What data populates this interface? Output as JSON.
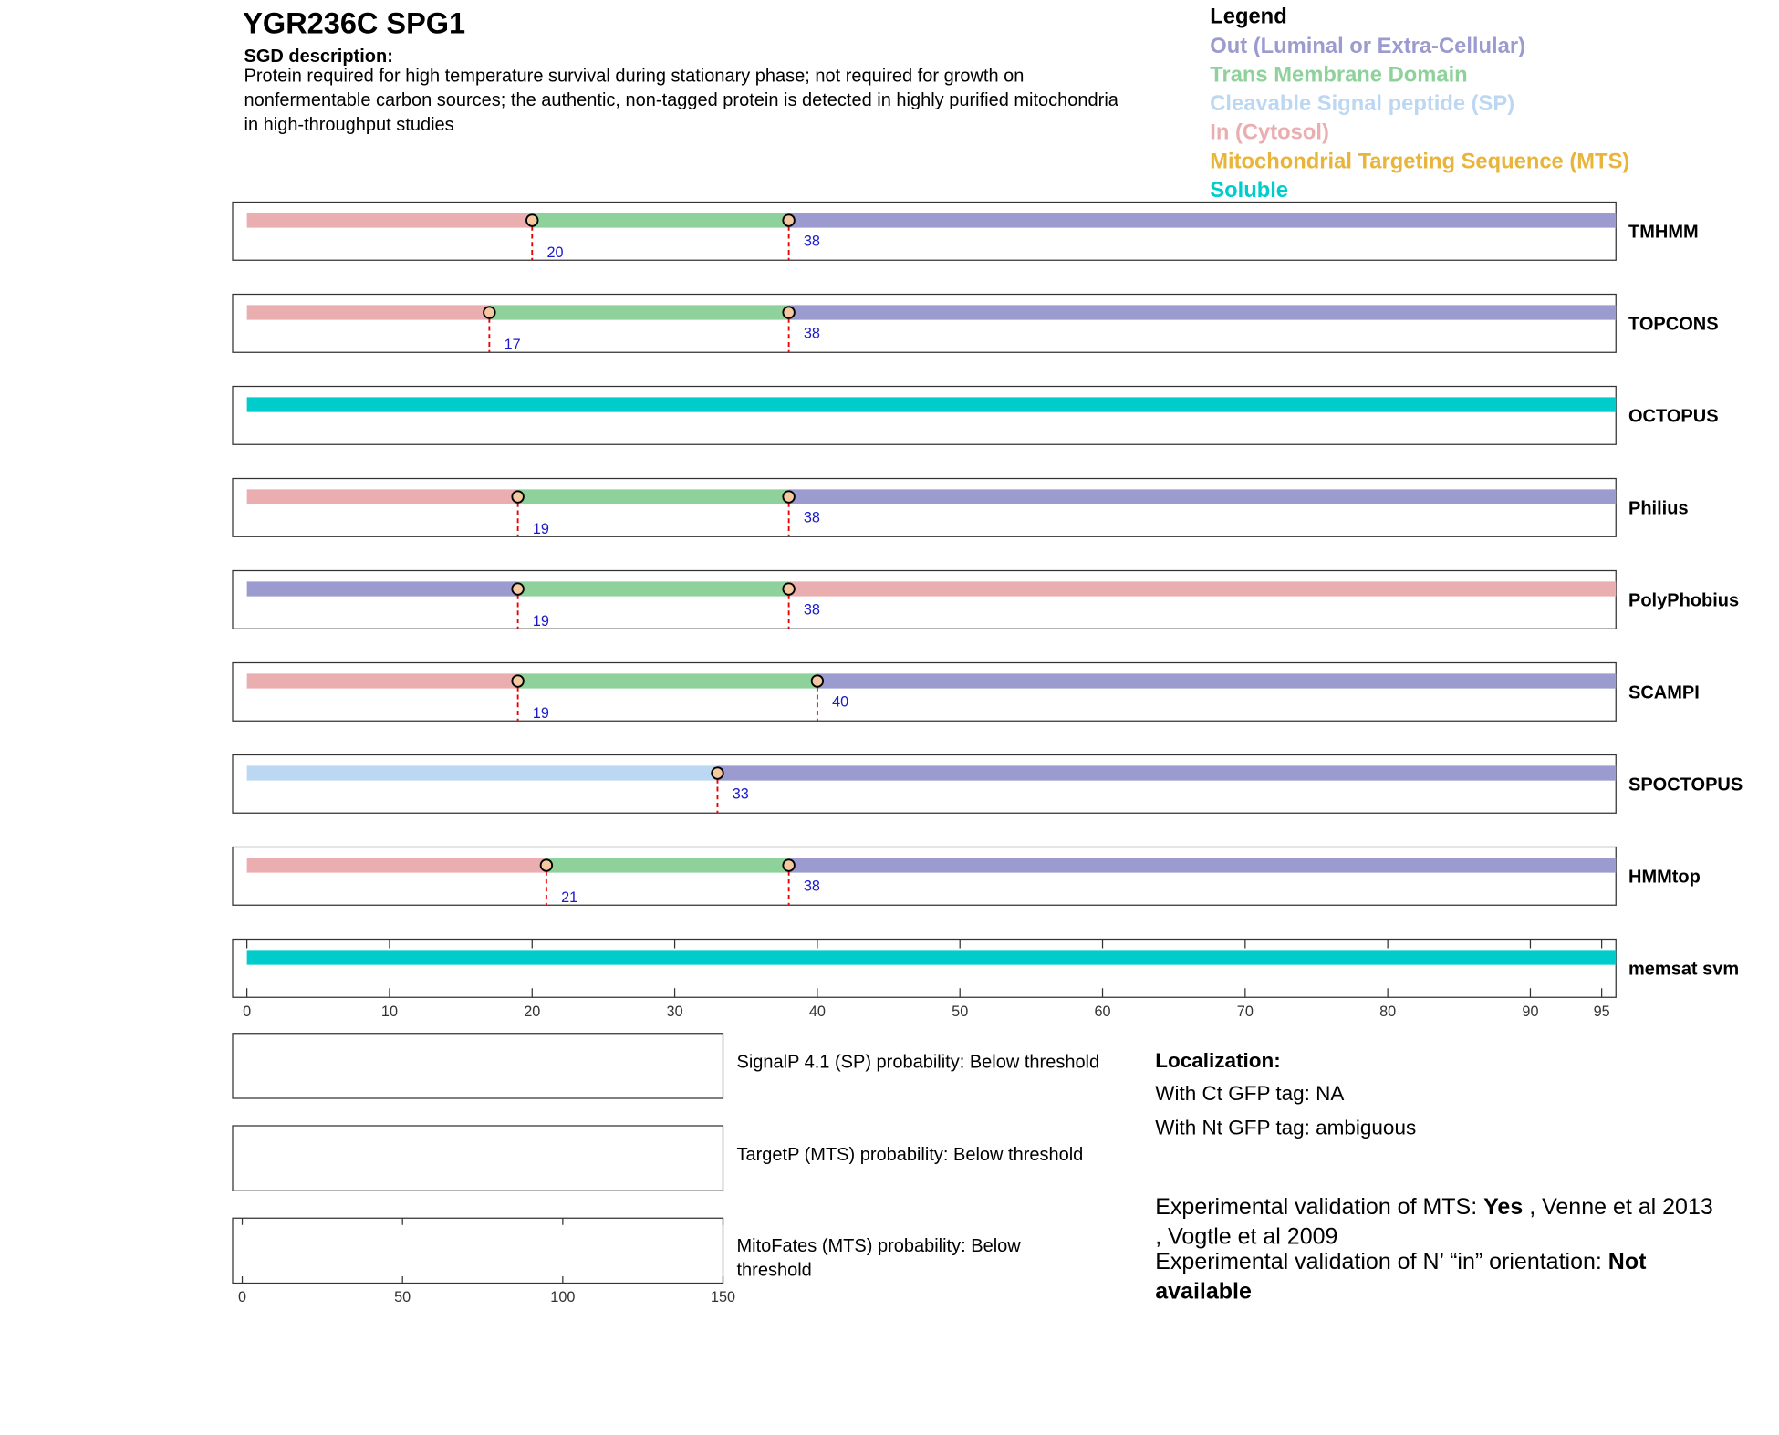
{
  "header": {
    "title": "YGR236C  SPG1",
    "subtitle": "SGD description:",
    "description": [
      "Protein required for high temperature survival during stationary phase; not required for growth on",
      "nonfermentable carbon sources; the authentic, non-tagged protein is detected in highly purified mitochondria",
      "in high-throughput studies"
    ]
  },
  "legend": {
    "title": "Legend",
    "items": [
      {
        "name": "Out (Luminal or Extra-Cellular)",
        "color": "#9b9bcf"
      },
      {
        "name": "Trans Membrane Domain",
        "color": "#8fd19b"
      },
      {
        "name": "Cleavable Signal peptide (SP)",
        "color": "#bcd7f2"
      },
      {
        "name": "In (Cytosol)",
        "color": "#eaaeb0"
      },
      {
        "name": "Mitochondrial Targeting Sequence (MTS)",
        "color": "#e8b43a"
      },
      {
        "name": "Soluble",
        "color": "#00cccc"
      }
    ]
  },
  "chart_data": {
    "type": "topology",
    "xlim": [
      -1,
      96
    ],
    "xticks": [
      0,
      10,
      20,
      30,
      40,
      50,
      60,
      70,
      80,
      90,
      95
    ],
    "tracks": [
      {
        "name": "TMHMM",
        "boundaries": [
          20,
          38
        ],
        "colors": [
          "#eaaeb0",
          "#8fd19b",
          "#9b9bcf"
        ]
      },
      {
        "name": "TOPCONS",
        "boundaries": [
          17,
          38
        ],
        "colors": [
          "#eaaeb0",
          "#8fd19b",
          "#9b9bcf"
        ]
      },
      {
        "name": "OCTOPUS",
        "boundaries": [],
        "colors": [
          "#00cccc"
        ]
      },
      {
        "name": "Philius",
        "boundaries": [
          19,
          38
        ],
        "colors": [
          "#eaaeb0",
          "#8fd19b",
          "#9b9bcf"
        ]
      },
      {
        "name": "PolyPhobius",
        "boundaries": [
          19,
          38
        ],
        "colors": [
          "#9b9bcf",
          "#8fd19b",
          "#eaaeb0"
        ]
      },
      {
        "name": "SCAMPI",
        "boundaries": [
          19,
          40
        ],
        "colors": [
          "#eaaeb0",
          "#8fd19b",
          "#9b9bcf"
        ]
      },
      {
        "name": "SPOCTOPUS",
        "boundaries": [
          33
        ],
        "colors": [
          "#bcd7f2",
          "#9b9bcf"
        ]
      },
      {
        "name": "HMMtop",
        "boundaries": [
          21,
          38
        ],
        "colors": [
          "#eaaeb0",
          "#8fd19b",
          "#9b9bcf"
        ]
      },
      {
        "name": "memsat svm",
        "boundaries": [],
        "colors": [
          "#00cccc"
        ]
      }
    ]
  },
  "probabilities": {
    "xlim": [
      -3,
      150
    ],
    "xticks": [
      0,
      50,
      100,
      150
    ],
    "panels": [
      [
        "SignalP 4.1 (SP) probability: Below threshold"
      ],
      [
        "TargetP (MTS) probability: Below threshold"
      ],
      [
        "MitoFates (MTS) probability: Below",
        "threshold"
      ]
    ]
  },
  "localization": {
    "title": "Localization:",
    "lines": [
      "With Ct GFP tag: NA",
      "With Nt GFP tag: ambiguous"
    ]
  },
  "validation": [
    [
      {
        "text": "Experimental validation of MTS: ",
        "bold": false
      },
      {
        "text": "Yes",
        "bold": true
      },
      {
        "text": " , Venne et al 2013",
        "bold": false
      }
    ],
    [
      {
        "text": ", Vogtle et al 2009",
        "bold": false
      }
    ],
    [
      {
        "text": "Experimental validation of N’ “in” orientation: ",
        "bold": false
      },
      {
        "text": "Not",
        "bold": true
      }
    ],
    [
      {
        "text": "available",
        "bold": true
      }
    ]
  ]
}
